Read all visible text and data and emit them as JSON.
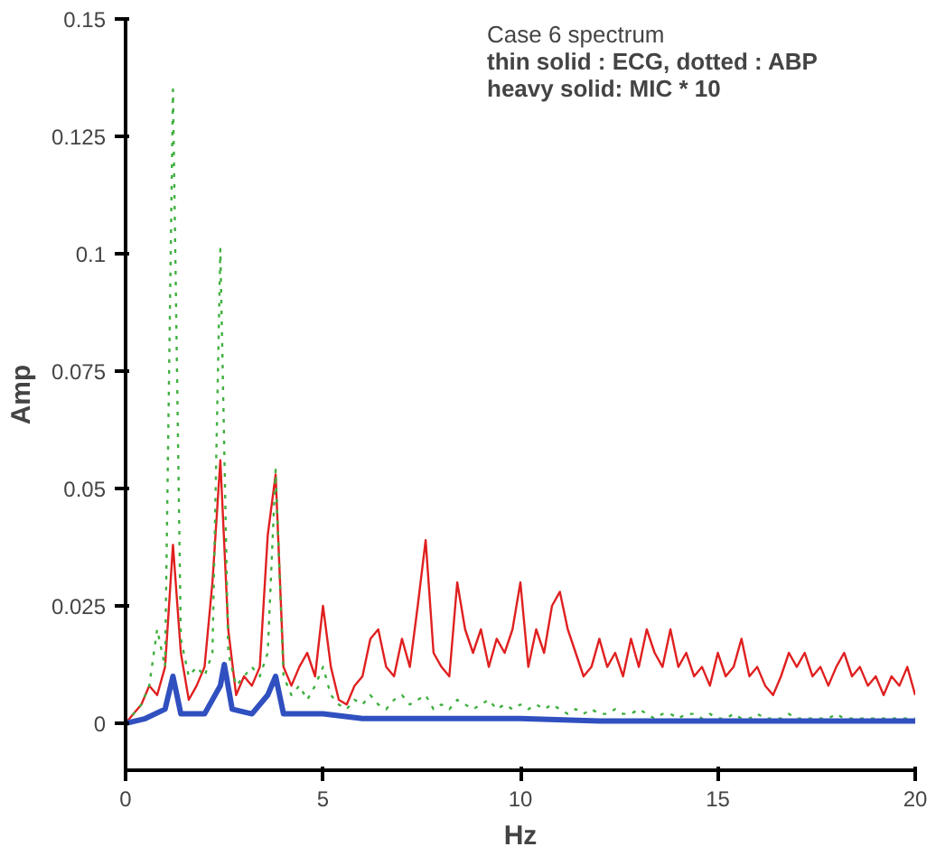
{
  "chart_data": {
    "type": "line",
    "xlabel": "Hz",
    "ylabel": "Amp",
    "annotations": [
      "Case 6 spectrum",
      "thin solid : ECG, dotted : ABP",
      "heavy solid: MIC * 10"
    ],
    "xlim": [
      0,
      20
    ],
    "ylim": [
      -0.01,
      0.15
    ],
    "xticks": [
      0,
      5,
      10,
      15,
      20
    ],
    "yticks": [
      0,
      0.025,
      0.05,
      0.075,
      0.1,
      0.125,
      0.15
    ],
    "grid": false,
    "marker": "none",
    "x": [
      0,
      0.2,
      0.4,
      0.6,
      0.8,
      1.0,
      1.2,
      1.4,
      1.6,
      1.8,
      2.0,
      2.2,
      2.4,
      2.6,
      2.8,
      3.0,
      3.2,
      3.4,
      3.6,
      3.8,
      4.0,
      4.2,
      4.4,
      4.6,
      4.8,
      5.0,
      5.2,
      5.4,
      5.6,
      5.8,
      6.0,
      6.2,
      6.4,
      6.6,
      6.8,
      7.0,
      7.2,
      7.4,
      7.6,
      7.8,
      8.0,
      8.2,
      8.4,
      8.6,
      8.8,
      9.0,
      9.2,
      9.4,
      9.6,
      9.8,
      10.0,
      10.2,
      10.4,
      10.6,
      10.8,
      11.0,
      11.2,
      11.4,
      11.6,
      11.8,
      12.0,
      12.2,
      12.4,
      12.6,
      12.8,
      13.0,
      13.2,
      13.4,
      13.6,
      13.8,
      14.0,
      14.2,
      14.4,
      14.6,
      14.8,
      15.0,
      15.2,
      15.4,
      15.6,
      15.8,
      16.0,
      16.2,
      16.4,
      16.6,
      16.8,
      17.0,
      17.2,
      17.4,
      17.6,
      17.8,
      18.0,
      18.2,
      18.4,
      18.6,
      18.8,
      19.0,
      19.2,
      19.4,
      19.6,
      19.8,
      20.0
    ],
    "series": [
      {
        "color": "#e02020",
        "line_style": "solid",
        "values": [
          0,
          0.002,
          0.004,
          0.008,
          0.006,
          0.012,
          0.038,
          0.015,
          0.005,
          0.008,
          0.012,
          0.03,
          0.056,
          0.02,
          0.006,
          0.01,
          0.008,
          0.012,
          0.04,
          0.053,
          0.012,
          0.008,
          0.012,
          0.015,
          0.01,
          0.025,
          0.012,
          0.005,
          0.004,
          0.008,
          0.01,
          0.018,
          0.02,
          0.012,
          0.01,
          0.018,
          0.012,
          0.025,
          0.039,
          0.015,
          0.012,
          0.01,
          0.03,
          0.02,
          0.015,
          0.02,
          0.012,
          0.018,
          0.015,
          0.02,
          0.03,
          0.012,
          0.02,
          0.015,
          0.025,
          0.028,
          0.02,
          0.015,
          0.01,
          0.012,
          0.018,
          0.012,
          0.015,
          0.01,
          0.018,
          0.012,
          0.02,
          0.015,
          0.012,
          0.02,
          0.012,
          0.015,
          0.01,
          0.012,
          0.008,
          0.015,
          0.01,
          0.012,
          0.018,
          0.01,
          0.012,
          0.008,
          0.006,
          0.01,
          0.015,
          0.012,
          0.015,
          0.01,
          0.012,
          0.008,
          0.012,
          0.015,
          0.01,
          0.012,
          0.008,
          0.01,
          0.006,
          0.01,
          0.008,
          0.012,
          0.006
        ]
      },
      {
        "color": "#40b040",
        "line_style": "dotted",
        "values": [
          0,
          0.002,
          0.004,
          0.008,
          0.02,
          0.012,
          0.135,
          0.018,
          0.01,
          0.012,
          0.01,
          0.015,
          0.101,
          0.015,
          0.008,
          0.01,
          0.012,
          0.01,
          0.015,
          0.054,
          0.01,
          0.006,
          0.008,
          0.005,
          0.008,
          0.012,
          0.006,
          0.004,
          0.003,
          0.005,
          0.004,
          0.006,
          0.004,
          0.003,
          0.005,
          0.006,
          0.004,
          0.005,
          0.006,
          0.003,
          0.004,
          0.003,
          0.005,
          0.004,
          0.003,
          0.004,
          0.005,
          0.003,
          0.004,
          0.003,
          0.004,
          0.003,
          0.004,
          0.003,
          0.004,
          0.003,
          0.002,
          0.003,
          0.002,
          0.003,
          0.002,
          0.002,
          0.003,
          0.002,
          0.002,
          0.003,
          0.002,
          0.001,
          0.002,
          0.002,
          0.001,
          0.002,
          0.002,
          0.001,
          0.002,
          0.001,
          0.001,
          0.002,
          0.001,
          0.001,
          0.002,
          0.001,
          0.001,
          0.001,
          0.002,
          0.001,
          0.001,
          0.001,
          0.001,
          0.001,
          0.002,
          0.001,
          0.001,
          0.001,
          0.001,
          0.001,
          0.001,
          0.001,
          0.001,
          0.001,
          0.001
        ]
      },
      {
        "color": "#3050c0",
        "line_style": "solid",
        "x": [
          0,
          0.5,
          1.0,
          1.2,
          1.4,
          2.0,
          2.4,
          2.5,
          2.7,
          3.2,
          3.6,
          3.8,
          4.0,
          5,
          6,
          8,
          10,
          12,
          15,
          20
        ],
        "values": [
          0,
          0.001,
          0.003,
          0.01,
          0.002,
          0.002,
          0.008,
          0.0125,
          0.003,
          0.002,
          0.006,
          0.01,
          0.002,
          0.002,
          0.001,
          0.001,
          0.001,
          0.0005,
          0.0005,
          0.0005
        ]
      }
    ]
  }
}
